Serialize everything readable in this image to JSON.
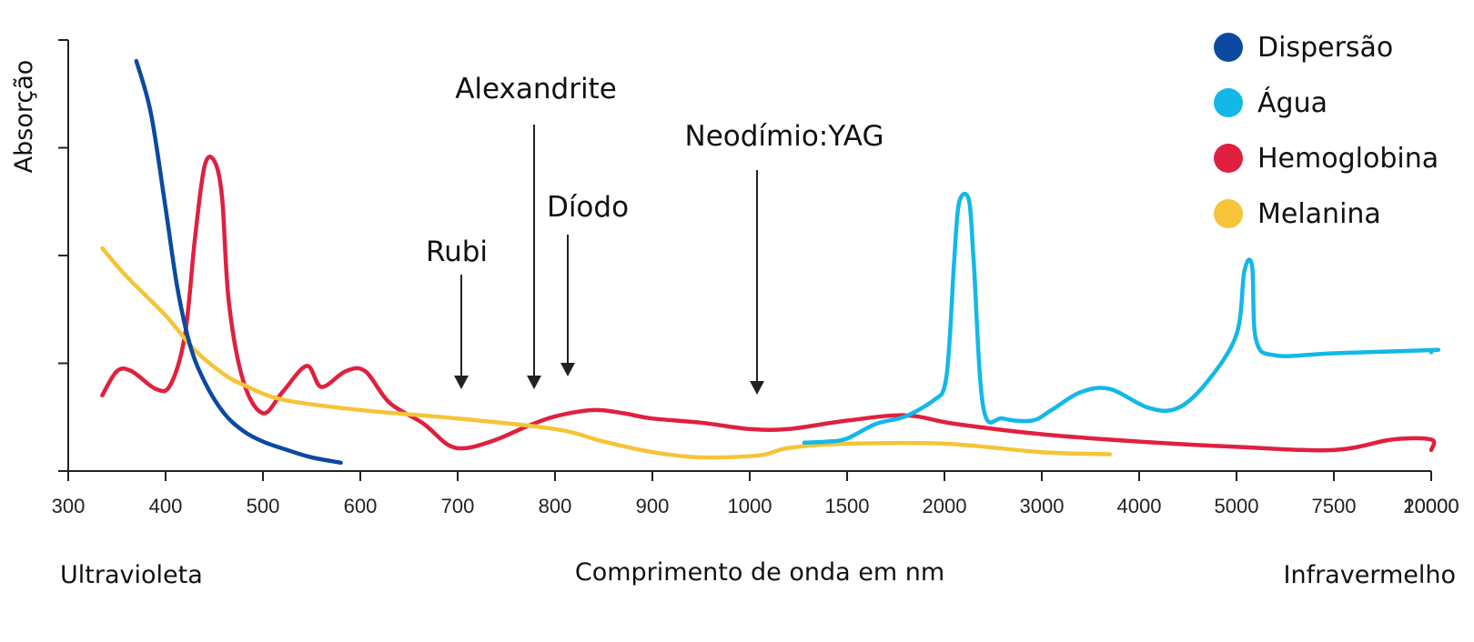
{
  "chart_data": {
    "type": "line",
    "title": "",
    "ylabel": "Absorção",
    "xlabel": "Comprimento de onda em nm",
    "x_left_label": "Ultravioleta",
    "x_right_label": "Infravermelho",
    "x_ticks": [
      "300",
      "400",
      "500",
      "600",
      "700",
      "800",
      "900",
      "1000",
      "1500",
      "2000",
      "3000",
      "4000",
      "5000",
      "7500",
      "10000",
      "20000"
    ],
    "y_ticks": 5,
    "grid": false,
    "legend_position": "top-right",
    "series": [
      {
        "name": "Dispersão",
        "color": "#0b4aa0",
        "points": [
          [
            370,
            3.9
          ],
          [
            385,
            3.4
          ],
          [
            400,
            2.5
          ],
          [
            412,
            1.75
          ],
          [
            425,
            1.2
          ],
          [
            440,
            0.85
          ],
          [
            460,
            0.55
          ],
          [
            480,
            0.38
          ],
          [
            500,
            0.28
          ],
          [
            525,
            0.2
          ],
          [
            550,
            0.13
          ],
          [
            580,
            0.08
          ]
        ]
      },
      {
        "name": "Água",
        "color": "#12b8e8",
        "points": [
          [
            1280,
            0.27
          ],
          [
            1400,
            0.28
          ],
          [
            1500,
            0.31
          ],
          [
            1650,
            0.45
          ],
          [
            1800,
            0.52
          ],
          [
            1950,
            0.68
          ],
          [
            2000,
            0.8
          ],
          [
            2050,
            1.2
          ],
          [
            2100,
            2.0
          ],
          [
            2150,
            2.55
          ],
          [
            2250,
            2.58
          ],
          [
            2300,
            2.0
          ],
          [
            2400,
            0.6
          ],
          [
            2600,
            0.5
          ],
          [
            2900,
            0.48
          ],
          [
            3100,
            0.58
          ],
          [
            3400,
            0.75
          ],
          [
            3700,
            0.78
          ],
          [
            4100,
            0.6
          ],
          [
            4400,
            0.6
          ],
          [
            4700,
            0.85
          ],
          [
            5000,
            1.3
          ],
          [
            5200,
            1.9
          ],
          [
            5400,
            1.95
          ],
          [
            5500,
            1.25
          ],
          [
            6000,
            1.1
          ],
          [
            7500,
            1.12
          ],
          [
            10000,
            1.15
          ],
          [
            15000,
            1.15
          ],
          [
            20000,
            1.13
          ]
        ]
      },
      {
        "name": "Hemoglobina",
        "color": "#e0203f",
        "points": [
          [
            335,
            0.72
          ],
          [
            350,
            0.95
          ],
          [
            365,
            0.95
          ],
          [
            390,
            0.78
          ],
          [
            405,
            0.82
          ],
          [
            420,
            1.3
          ],
          [
            430,
            2.2
          ],
          [
            440,
            2.9
          ],
          [
            450,
            2.95
          ],
          [
            458,
            2.6
          ],
          [
            465,
            1.6
          ],
          [
            480,
            0.85
          ],
          [
            500,
            0.55
          ],
          [
            520,
            0.75
          ],
          [
            545,
            1.0
          ],
          [
            560,
            0.8
          ],
          [
            585,
            0.95
          ],
          [
            605,
            0.95
          ],
          [
            630,
            0.65
          ],
          [
            665,
            0.45
          ],
          [
            690,
            0.25
          ],
          [
            710,
            0.22
          ],
          [
            740,
            0.3
          ],
          [
            770,
            0.42
          ],
          [
            800,
            0.52
          ],
          [
            840,
            0.58
          ],
          [
            870,
            0.55
          ],
          [
            900,
            0.5
          ],
          [
            950,
            0.46
          ],
          [
            1000,
            0.4
          ],
          [
            1200,
            0.4
          ],
          [
            1500,
            0.48
          ],
          [
            1800,
            0.53
          ],
          [
            2100,
            0.45
          ],
          [
            3000,
            0.35
          ],
          [
            4000,
            0.28
          ],
          [
            5000,
            0.23
          ],
          [
            7500,
            0.2
          ],
          [
            9000,
            0.3
          ],
          [
            10000,
            0.3
          ],
          [
            15000,
            0.2
          ]
        ]
      },
      {
        "name": "Melanina",
        "color": "#f5c437",
        "points": [
          [
            335,
            2.12
          ],
          [
            360,
            1.85
          ],
          [
            400,
            1.48
          ],
          [
            430,
            1.15
          ],
          [
            460,
            0.92
          ],
          [
            480,
            0.82
          ],
          [
            520,
            0.68
          ],
          [
            600,
            0.58
          ],
          [
            700,
            0.5
          ],
          [
            800,
            0.4
          ],
          [
            850,
            0.28
          ],
          [
            900,
            0.18
          ],
          [
            950,
            0.13
          ],
          [
            1050,
            0.15
          ],
          [
            1200,
            0.22
          ],
          [
            1500,
            0.26
          ],
          [
            2000,
            0.26
          ],
          [
            3000,
            0.18
          ],
          [
            3700,
            0.16
          ]
        ]
      }
    ],
    "annotations": [
      {
        "label": "Rubi",
        "x": 694
      },
      {
        "label": "Alexandrite",
        "x": 755
      },
      {
        "label": "Díodo",
        "x": 810
      },
      {
        "label": "Neodímio:YAG",
        "x": 1064
      }
    ]
  }
}
